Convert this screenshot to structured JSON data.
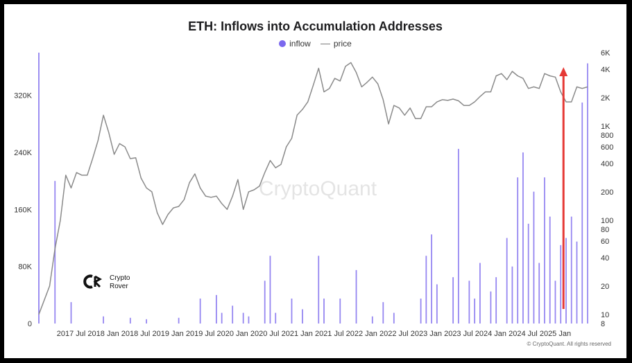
{
  "chart_data": {
    "type": "bar+line",
    "title": "ETH: Inflows into Accumulation Addresses",
    "legend": [
      "inflow",
      "price"
    ],
    "x_ticks": [
      "2017 Jul",
      "2018 Jan",
      "2018 Jul",
      "2019 Jan",
      "2019 Jul",
      "2020 Jan",
      "2020 Jul",
      "2021 Jan",
      "2021 Jul",
      "2022 Jan",
      "2022 Jul",
      "2023 Jan",
      "2023 Jul",
      "2024 Jan",
      "2024 Jul",
      "2025 Jan"
    ],
    "x_range": [
      "2017-01",
      "2025-07"
    ],
    "left_axis": {
      "label": "",
      "ticks": [
        0,
        80000,
        160000,
        240000,
        320000
      ],
      "tick_labels": [
        "0",
        "80K",
        "160K",
        "240K",
        "320K"
      ],
      "range": [
        0,
        380000
      ]
    },
    "right_axis": {
      "label": "",
      "scale": "log",
      "tick_values": [
        8,
        10,
        20,
        40,
        60,
        80,
        100,
        200,
        400,
        600,
        800,
        1000,
        2000,
        4000,
        6000
      ],
      "tick_labels": [
        "8",
        "10",
        "20",
        "40",
        "60",
        "80",
        "100",
        "200",
        "400",
        "600",
        "800",
        "1K",
        "2K",
        "4K",
        "6K"
      ],
      "range": [
        8,
        6000
      ]
    },
    "series": [
      {
        "name": "price",
        "kind": "line",
        "color": "#8a8a8a",
        "points": [
          [
            "2017-01",
            10
          ],
          [
            "2017-03",
            20
          ],
          [
            "2017-04",
            50
          ],
          [
            "2017-05",
            100
          ],
          [
            "2017-06",
            300
          ],
          [
            "2017-07",
            220
          ],
          [
            "2017-08",
            320
          ],
          [
            "2017-09",
            300
          ],
          [
            "2017-10",
            300
          ],
          [
            "2017-11",
            450
          ],
          [
            "2017-12",
            700
          ],
          [
            "2018-01",
            1300
          ],
          [
            "2018-02",
            850
          ],
          [
            "2018-03",
            500
          ],
          [
            "2018-04",
            650
          ],
          [
            "2018-05",
            600
          ],
          [
            "2018-06",
            450
          ],
          [
            "2018-07",
            460
          ],
          [
            "2018-08",
            280
          ],
          [
            "2018-09",
            220
          ],
          [
            "2018-10",
            200
          ],
          [
            "2018-11",
            120
          ],
          [
            "2018-12",
            90
          ],
          [
            "2019-01",
            115
          ],
          [
            "2019-02",
            135
          ],
          [
            "2019-03",
            140
          ],
          [
            "2019-04",
            165
          ],
          [
            "2019-05",
            250
          ],
          [
            "2019-06",
            310
          ],
          [
            "2019-07",
            220
          ],
          [
            "2019-08",
            180
          ],
          [
            "2019-09",
            175
          ],
          [
            "2019-10",
            180
          ],
          [
            "2019-11",
            150
          ],
          [
            "2019-12",
            130
          ],
          [
            "2020-01",
            180
          ],
          [
            "2020-02",
            270
          ],
          [
            "2020-03",
            130
          ],
          [
            "2020-04",
            200
          ],
          [
            "2020-05",
            210
          ],
          [
            "2020-06",
            230
          ],
          [
            "2020-07",
            320
          ],
          [
            "2020-08",
            430
          ],
          [
            "2020-09",
            360
          ],
          [
            "2020-10",
            390
          ],
          [
            "2020-11",
            600
          ],
          [
            "2020-12",
            740
          ],
          [
            "2021-01",
            1300
          ],
          [
            "2021-02",
            1500
          ],
          [
            "2021-03",
            1800
          ],
          [
            "2021-04",
            2700
          ],
          [
            "2021-05",
            4100
          ],
          [
            "2021-06",
            2300
          ],
          [
            "2021-07",
            2500
          ],
          [
            "2021-08",
            3200
          ],
          [
            "2021-09",
            3000
          ],
          [
            "2021-10",
            4300
          ],
          [
            "2021-11",
            4700
          ],
          [
            "2021-12",
            3700
          ],
          [
            "2022-01",
            2600
          ],
          [
            "2022-02",
            2900
          ],
          [
            "2022-03",
            3300
          ],
          [
            "2022-04",
            2800
          ],
          [
            "2022-05",
            1900
          ],
          [
            "2022-06",
            1050
          ],
          [
            "2022-07",
            1650
          ],
          [
            "2022-08",
            1550
          ],
          [
            "2022-09",
            1300
          ],
          [
            "2022-10",
            1550
          ],
          [
            "2022-11",
            1200
          ],
          [
            "2022-12",
            1200
          ],
          [
            "2023-01",
            1600
          ],
          [
            "2023-02",
            1600
          ],
          [
            "2023-03",
            1800
          ],
          [
            "2023-04",
            1900
          ],
          [
            "2023-05",
            1870
          ],
          [
            "2023-06",
            1930
          ],
          [
            "2023-07",
            1850
          ],
          [
            "2023-08",
            1650
          ],
          [
            "2023-09",
            1650
          ],
          [
            "2023-10",
            1800
          ],
          [
            "2023-11",
            2050
          ],
          [
            "2023-12",
            2300
          ],
          [
            "2024-01",
            2300
          ],
          [
            "2024-02",
            3400
          ],
          [
            "2024-03",
            3600
          ],
          [
            "2024-04",
            3100
          ],
          [
            "2024-05",
            3800
          ],
          [
            "2024-06",
            3400
          ],
          [
            "2024-07",
            3200
          ],
          [
            "2024-08",
            2500
          ],
          [
            "2024-09",
            2600
          ],
          [
            "2024-10",
            2500
          ],
          [
            "2024-11",
            3600
          ],
          [
            "2024-12",
            3400
          ],
          [
            "2025-01",
            3300
          ],
          [
            "2025-02",
            2300
          ],
          [
            "2025-03",
            1800
          ],
          [
            "2025-04",
            1800
          ],
          [
            "2025-05",
            2600
          ],
          [
            "2025-06",
            2500
          ],
          [
            "2025-07",
            2600
          ]
        ]
      },
      {
        "name": "inflow",
        "kind": "bar",
        "color": "#7b68ee",
        "points": [
          [
            "2017-04",
            200000
          ],
          [
            "2017-07",
            30000
          ],
          [
            "2018-01",
            10000
          ],
          [
            "2018-06",
            8000
          ],
          [
            "2018-09",
            6000
          ],
          [
            "2019-03",
            8000
          ],
          [
            "2019-07",
            35000
          ],
          [
            "2019-10",
            40000
          ],
          [
            "2019-11",
            15000
          ],
          [
            "2020-01",
            25000
          ],
          [
            "2020-03",
            15000
          ],
          [
            "2020-04",
            10000
          ],
          [
            "2020-07",
            60000
          ],
          [
            "2020-08",
            95000
          ],
          [
            "2020-09",
            15000
          ],
          [
            "2020-12",
            35000
          ],
          [
            "2021-02",
            20000
          ],
          [
            "2021-05",
            95000
          ],
          [
            "2021-06",
            35000
          ],
          [
            "2021-09",
            35000
          ],
          [
            "2021-12",
            75000
          ],
          [
            "2022-03",
            10000
          ],
          [
            "2022-05",
            30000
          ],
          [
            "2022-07",
            15000
          ],
          [
            "2022-12",
            35000
          ],
          [
            "2023-01",
            95000
          ],
          [
            "2023-02",
            125000
          ],
          [
            "2023-03",
            55000
          ],
          [
            "2023-06",
            65000
          ],
          [
            "2023-07",
            245000
          ],
          [
            "2023-09",
            60000
          ],
          [
            "2023-10",
            35000
          ],
          [
            "2023-11",
            85000
          ],
          [
            "2024-01",
            45000
          ],
          [
            "2024-02",
            65000
          ],
          [
            "2024-04",
            120000
          ],
          [
            "2024-05",
            80000
          ],
          [
            "2024-06",
            205000
          ],
          [
            "2024-07",
            240000
          ],
          [
            "2024-08",
            140000
          ],
          [
            "2024-09",
            185000
          ],
          [
            "2024-10",
            85000
          ],
          [
            "2024-11",
            205000
          ],
          [
            "2024-12",
            150000
          ],
          [
            "2025-01",
            60000
          ],
          [
            "2025-02",
            110000
          ],
          [
            "2025-03",
            120000
          ],
          [
            "2025-04",
            150000
          ],
          [
            "2025-05",
            115000
          ],
          [
            "2025-06",
            310000
          ],
          [
            "2025-07",
            365000
          ]
        ]
      }
    ],
    "annotations": [
      "red upward arrow highlighting the latest inflow spike"
    ]
  },
  "watermark": "CryptoQuant",
  "brand": {
    "line1": "Crypto",
    "line2": "Rover",
    "logo_text": "CR"
  },
  "copyright": "© CryptoQuant. All rights reserved",
  "colors": {
    "inflow": "#7b68ee",
    "price": "#8a8a8a",
    "arrow": "#e53935",
    "background": "#ffffff",
    "frame": "#000000"
  }
}
